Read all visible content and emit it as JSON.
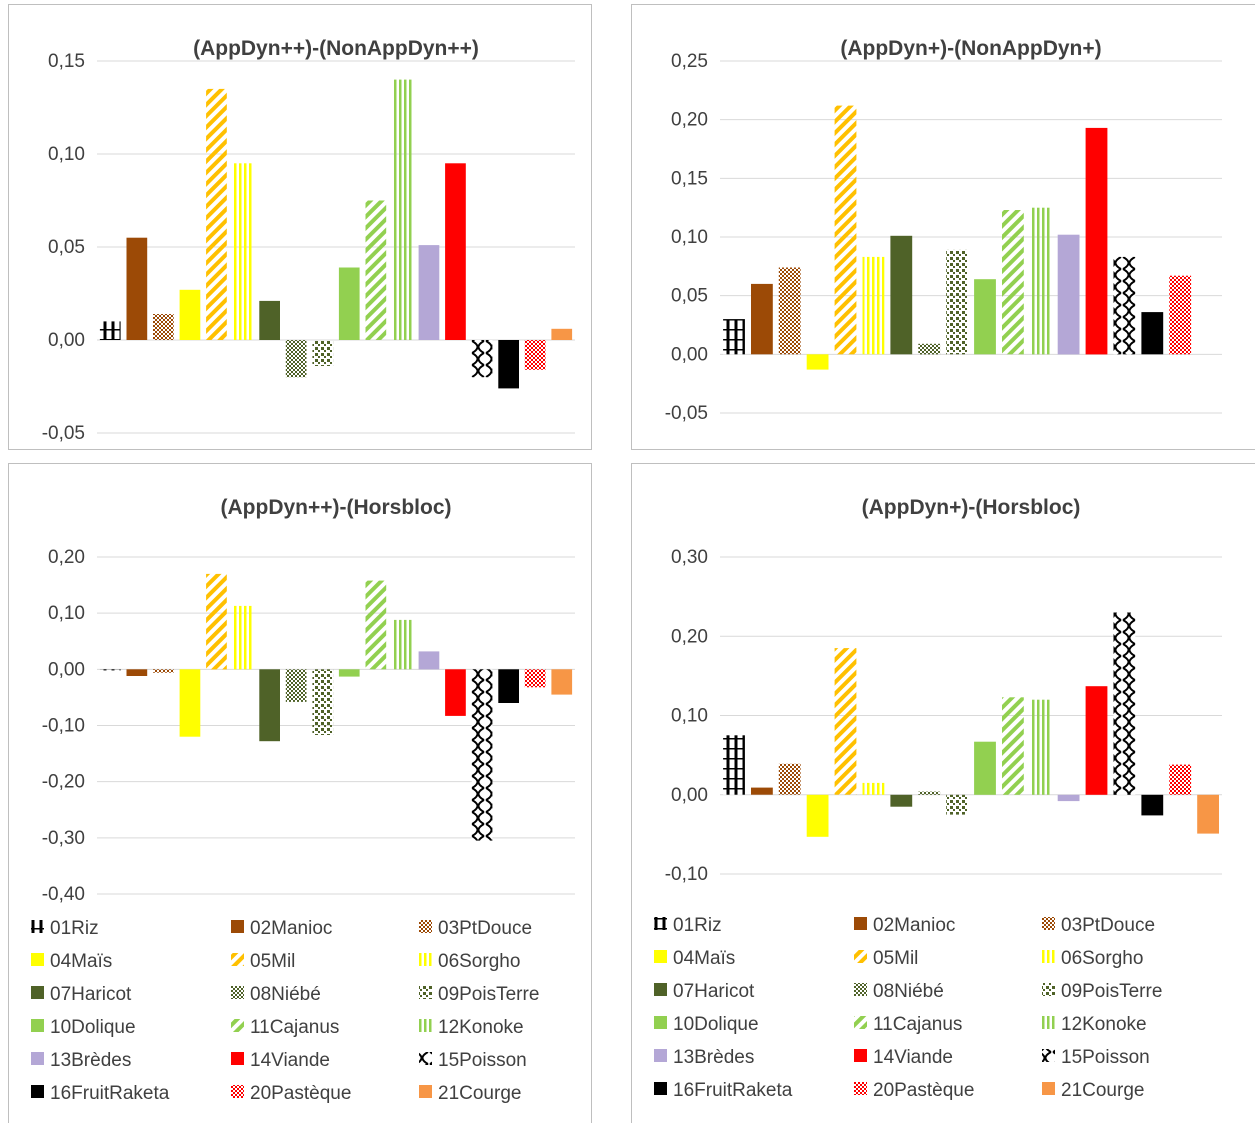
{
  "colors": {
    "01Riz": "#000000",
    "02Manioc": "#9c4a06",
    "03PtDouce": "#9c4a06",
    "04Maïs": "#ffff00",
    "05Mil": "#ffc000",
    "06Sorgho": "#ffff00",
    "07Haricot": "#4f6228",
    "08Niébé": "#4f6228",
    "09PoisTerre": "#4f6228",
    "10Dolique": "#92d050",
    "11Cajanus": "#92d050",
    "12Konoke": "#92d050",
    "13Brèdes": "#b4a7d6",
    "14Viande": "#ff0000",
    "15Poisson": "#000000",
    "16FruitRaketa": "#000000",
    "20Pastèque": "#ff0000",
    "21Courge": "#f79646",
    "grid": "#d9d9d9",
    "axis_text": "#404040",
    "border": "#bfbfbf"
  },
  "chart_data": [
    {
      "type": "bar",
      "title": "(AppDyn++)-(NonAppDyn++)",
      "categories": [
        "01Riz",
        "02Manioc",
        "03PtDouce",
        "04Maïs",
        "05Mil",
        "06Sorgho",
        "07Haricot",
        "08Niébé",
        "09PoisTerre",
        "10Dolique",
        "11Cajanus",
        "12Konoke",
        "13Brèdes",
        "14Viande",
        "15Poisson",
        "16FruitRaketa",
        "20Pastèque",
        "21Courge"
      ],
      "values": [
        0.01,
        0.055,
        0.014,
        0.027,
        0.135,
        0.095,
        0.021,
        -0.02,
        -0.014,
        0.039,
        0.075,
        0.14,
        0.051,
        0.095,
        -0.02,
        -0.026,
        -0.016,
        0.006
      ],
      "ylim": [
        -0.05,
        0.15
      ],
      "yticks": [
        "-0,05",
        "0,00",
        "0,05",
        "0,10",
        "0,15"
      ],
      "grid": true,
      "legend": "none"
    },
    {
      "type": "bar",
      "title": "(AppDyn+)-(NonAppDyn+)",
      "categories": [
        "01Riz",
        "02Manioc",
        "03PtDouce",
        "04Maïs",
        "05Mil",
        "06Sorgho",
        "07Haricot",
        "08Niébé",
        "09PoisTerre",
        "10Dolique",
        "11Cajanus",
        "12Konoke",
        "13Brèdes",
        "14Viande",
        "15Poisson",
        "16FruitRaketa",
        "20Pastèque",
        "21Courge"
      ],
      "values": [
        0.03,
        0.06,
        0.074,
        -0.013,
        0.212,
        0.083,
        0.101,
        0.009,
        0.089,
        0.064,
        0.123,
        0.125,
        0.102,
        0.193,
        0.083,
        0.036,
        0.067,
        null
      ],
      "ylim": [
        -0.05,
        0.25
      ],
      "yticks": [
        "-0,05",
        "0,00",
        "0,05",
        "0,10",
        "0,15",
        "0,20",
        "0,25"
      ],
      "grid": true,
      "legend": "none"
    },
    {
      "type": "bar",
      "title": "(AppDyn++)-(Horsbloc)",
      "categories": [
        "01Riz",
        "02Manioc",
        "03PtDouce",
        "04Maïs",
        "05Mil",
        "06Sorgho",
        "07Haricot",
        "08Niébé",
        "09PoisTerre",
        "10Dolique",
        "11Cajanus",
        "12Konoke",
        "13Brèdes",
        "14Viande",
        "15Poisson",
        "16FruitRaketa",
        "20Pastèque",
        "21Courge"
      ],
      "values": [
        -0.002,
        -0.012,
        -0.006,
        -0.12,
        0.17,
        0.113,
        -0.128,
        -0.058,
        -0.117,
        -0.013,
        0.158,
        0.088,
        0.032,
        -0.083,
        -0.305,
        -0.06,
        -0.032,
        -0.045
      ],
      "ylim": [
        -0.4,
        0.2
      ],
      "yticks": [
        "-0,40",
        "-0,30",
        "-0,20",
        "-0,10",
        "0,00",
        "0,10",
        "0,20"
      ],
      "grid": true,
      "legend": "bottom"
    },
    {
      "type": "bar",
      "title": "(AppDyn+)-(Horsbloc)",
      "categories": [
        "01Riz",
        "02Manioc",
        "03PtDouce",
        "04Maïs",
        "05Mil",
        "06Sorgho",
        "07Haricot",
        "08Niébé",
        "09PoisTerre",
        "10Dolique",
        "11Cajanus",
        "12Konoke",
        "13Brèdes",
        "14Viande",
        "15Poisson",
        "16FruitRaketa",
        "20Pastèque",
        "21Courge"
      ],
      "values": [
        0.075,
        0.009,
        0.039,
        -0.053,
        0.185,
        0.015,
        -0.015,
        0.004,
        -0.025,
        0.067,
        0.123,
        0.12,
        -0.008,
        0.137,
        0.23,
        -0.026,
        0.038,
        -0.049
      ],
      "ylim": [
        -0.1,
        0.3
      ],
      "yticks": [
        "-0,10",
        "0,00",
        "0,10",
        "0,20",
        "0,30"
      ],
      "grid": true,
      "legend": "bottom"
    }
  ]
}
